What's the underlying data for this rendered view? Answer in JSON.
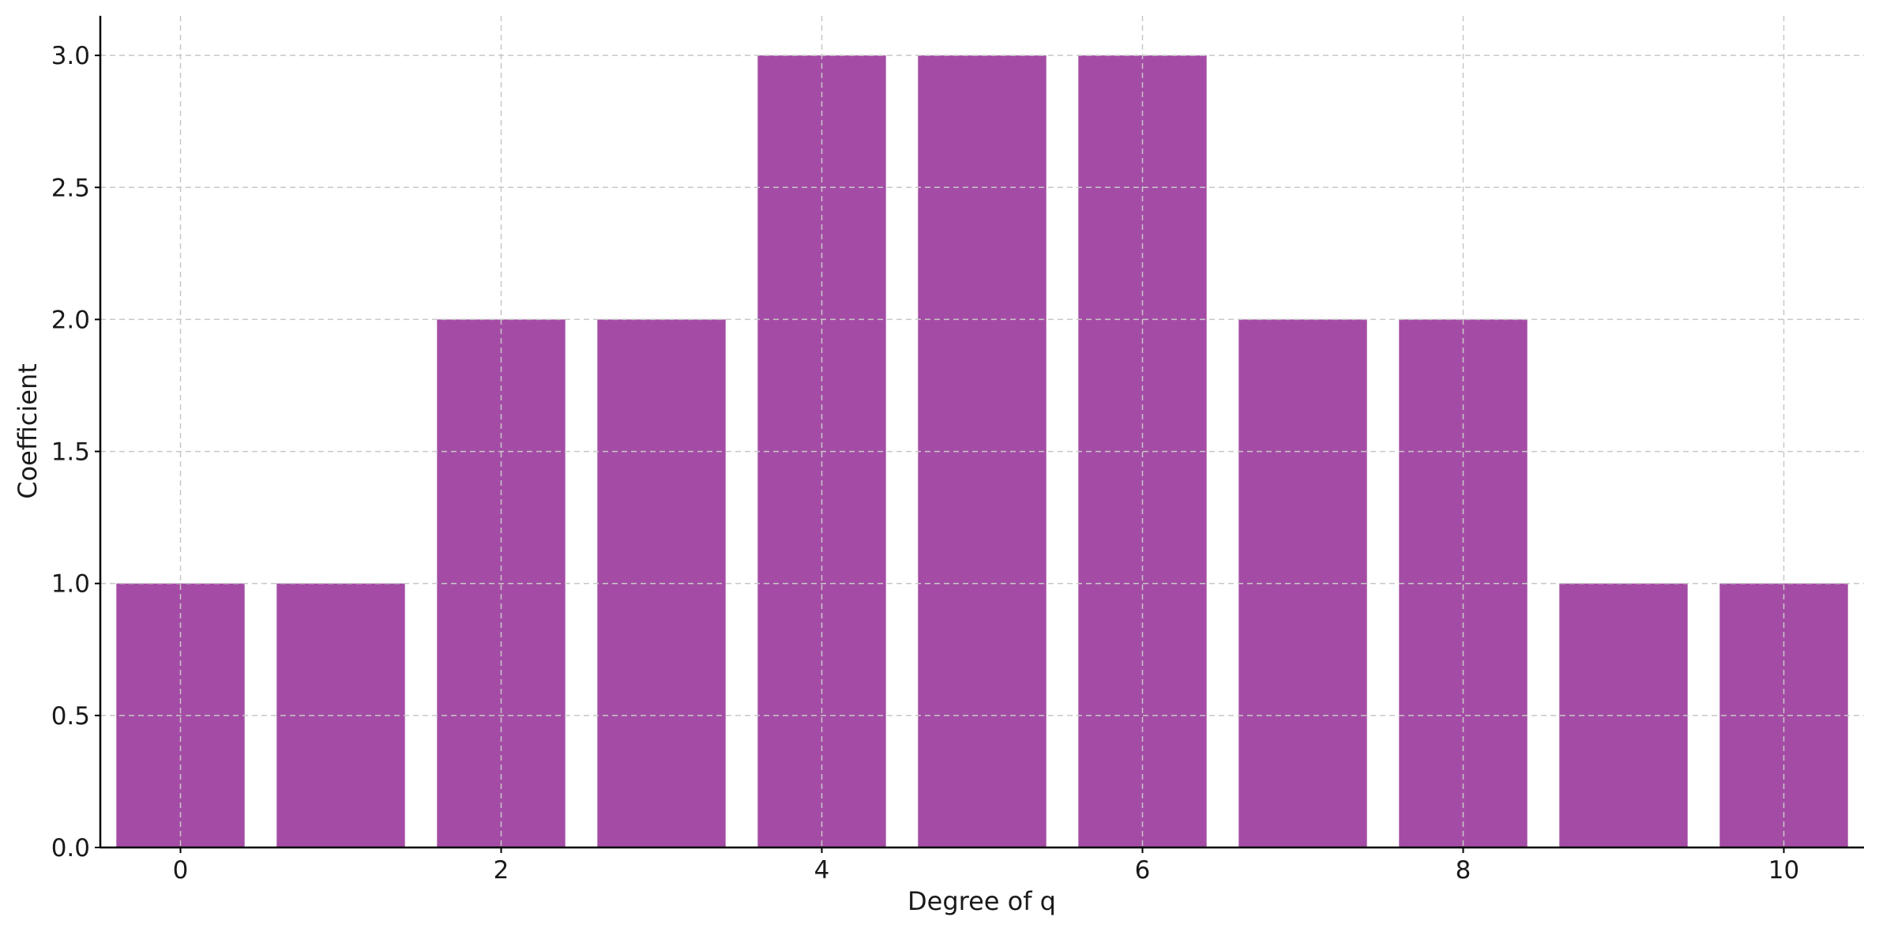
{
  "chart_data": {
    "type": "bar",
    "title": "",
    "xlabel": "Degree of q",
    "ylabel": "Coefficient",
    "x": [
      0,
      1,
      2,
      3,
      4,
      5,
      6,
      7,
      8,
      9,
      10
    ],
    "values": [
      1,
      1,
      2,
      2,
      3,
      3,
      3,
      2,
      2,
      1,
      1
    ],
    "xticks": [
      0,
      2,
      4,
      6,
      8,
      10
    ],
    "xtick_labels": [
      "0",
      "2",
      "4",
      "6",
      "8",
      "10"
    ],
    "yticks": [
      0,
      0.5,
      1,
      1.5,
      2,
      2.5,
      3
    ],
    "ytick_labels": [
      "0.0",
      "0.5",
      "1.0",
      "1.5",
      "2.0",
      "2.5",
      "3.0"
    ],
    "xlim": [
      -0.5,
      10.5
    ],
    "ylim": [
      0,
      3.15
    ],
    "bar_color": "#a44ca5",
    "grid": true,
    "legend": "none"
  }
}
